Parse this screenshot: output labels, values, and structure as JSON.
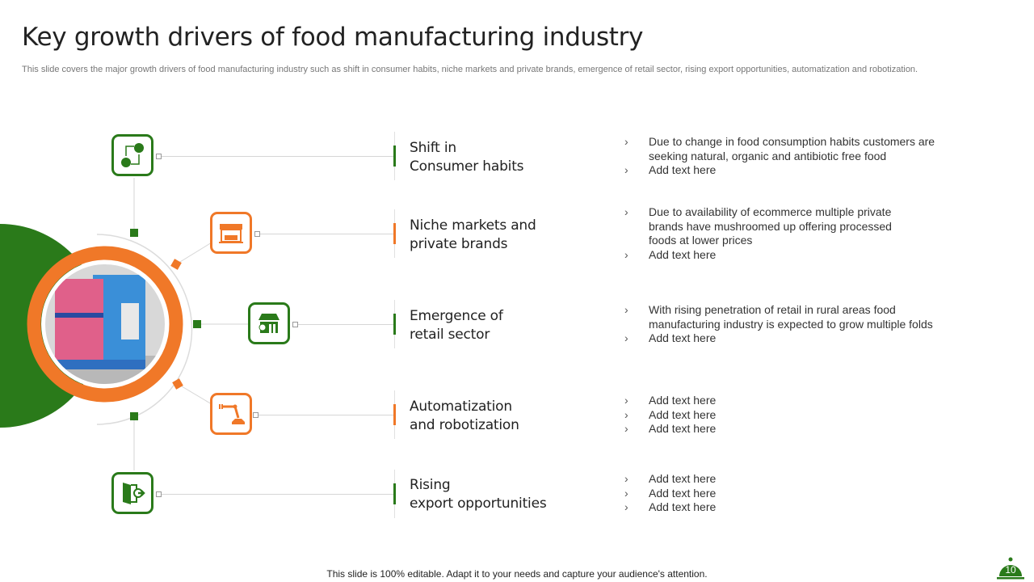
{
  "title": "Key growth drivers of food manufacturing industry",
  "subtitle": "This slide covers the major growth drivers of food manufacturing industry such as  shift in consumer habits, niche markets and private brands, emergence of retail sector, rising export opportunities, automatization and robotization.",
  "colors": {
    "green": "#2a7a1a",
    "orange": "#f07828"
  },
  "drivers": [
    {
      "label_l1": "Shift in",
      "label_l2": "Consumer habits",
      "icon": "consumer-exchange-icon",
      "bullets": [
        "Due to change in food consumption habits customers are seeking natural, organic and antibiotic free food",
        "Add text here"
      ]
    },
    {
      "label_l1": "Niche markets and",
      "label_l2": "private brands",
      "icon": "storefront-icon",
      "bullets": [
        "Due to availability  of ecommerce multiple private brands have mushroomed up offering processed foods at lower prices",
        "Add text here"
      ]
    },
    {
      "label_l1": "Emergence of",
      "label_l2": "retail sector",
      "icon": "retail-store-icon",
      "bullets": [
        "With rising penetration of retail in rural areas food manufacturing industry is expected to grow multiple folds",
        "Add text here"
      ]
    },
    {
      "label_l1": "Automatization",
      "label_l2": "and robotization",
      "icon": "robot-arm-icon",
      "bullets": [
        "Add text here",
        "Add text here",
        "Add text here"
      ]
    },
    {
      "label_l1": "Rising",
      "label_l2": "export opportunities",
      "icon": "exit-door-icon",
      "bullets": [
        "Add text here",
        "Add text here",
        "Add text here"
      ]
    }
  ],
  "bullet_glyph": "›",
  "footer": "This slide is 100% editable. Adapt it to your needs and capture your audience's attention.",
  "page_number": "10"
}
